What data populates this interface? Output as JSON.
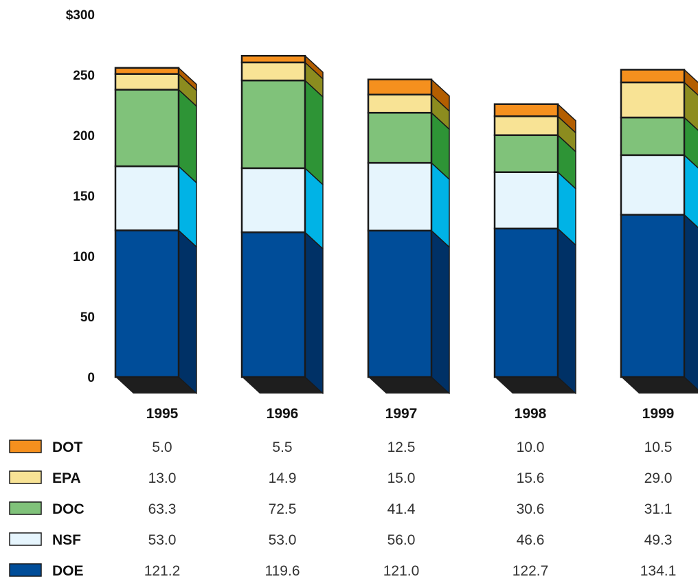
{
  "chart_data": {
    "type": "bar",
    "stacked": true,
    "style": "3d",
    "categories": [
      "1995",
      "1996",
      "1997",
      "1998",
      "1999"
    ],
    "yticks": [
      "$300",
      "250",
      "200",
      "150",
      "100",
      "50",
      "0"
    ],
    "ylim": [
      0,
      300
    ],
    "grid": false,
    "legend": "bottom-left-table",
    "series": [
      {
        "name": "DOE",
        "values": [
          "121.2",
          "119.6",
          "121.0",
          "122.7",
          "134.1"
        ],
        "color": "#004d99",
        "side": "#003166"
      },
      {
        "name": "NSF",
        "values": [
          "53.0",
          "53.0",
          "56.0",
          "46.6",
          "49.3"
        ],
        "color": "#e6f5fd",
        "side": "#00b3e6"
      },
      {
        "name": "DOC",
        "values": [
          "63.3",
          "72.5",
          "41.4",
          "30.6",
          "31.1"
        ],
        "color": "#80c27a",
        "side": "#2e9436"
      },
      {
        "name": "EPA",
        "values": [
          "13.0",
          "14.9",
          "15.0",
          "15.6",
          "29.0"
        ],
        "color": "#f8e395",
        "side": "#8c8c1f"
      },
      {
        "name": "DOT",
        "values": [
          "5.0",
          "5.5",
          "12.5",
          "10.0",
          "10.5"
        ],
        "color": "#f5901e",
        "side": "#b35e00"
      }
    ]
  }
}
